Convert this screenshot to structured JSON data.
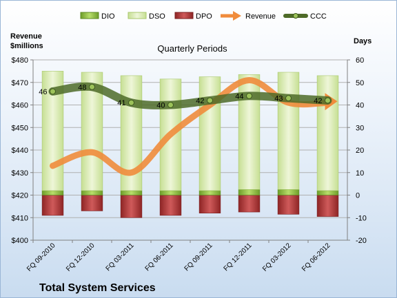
{
  "chart_data": {
    "type": "bar",
    "title": "Quarterly Periods",
    "footer_title": "Total System Services",
    "left_axis_label": [
      "Revenue",
      "$millions"
    ],
    "right_axis_label": "Days",
    "categories": [
      "FQ 09-2010",
      "FQ 12-2010",
      "FQ 03-2011",
      "FQ 06-2011",
      "FQ 09-2011",
      "FQ 12-2011",
      "FQ 03-2012",
      "FQ 06-2012"
    ],
    "left_axis": {
      "min": 400,
      "max": 480,
      "step": 10,
      "tick_labels": [
        "$400",
        "$410",
        "$420",
        "$430",
        "$440",
        "$450",
        "$460",
        "$470",
        "$480"
      ]
    },
    "right_axis": {
      "min": -20,
      "max": 60,
      "step": 10,
      "tick_labels": [
        "-20",
        "-10",
        "0",
        "10",
        "20",
        "30",
        "40",
        "50",
        "60"
      ]
    },
    "legend_position": "top",
    "series": [
      {
        "name": "DIO",
        "kind": "bar",
        "axis": "right",
        "color": "#8fbf3a",
        "values": [
          2,
          2,
          2,
          2,
          2,
          2.5,
          2.5,
          2
        ]
      },
      {
        "name": "DSO",
        "kind": "bar",
        "axis": "right",
        "color": "#dcebb7",
        "values": [
          53,
          52.5,
          51,
          49.5,
          50.5,
          51,
          52,
          51
        ]
      },
      {
        "name": "DPO",
        "kind": "bar",
        "axis": "right",
        "color": "#b03a3a",
        "values": [
          -9,
          -7,
          -10,
          -9,
          -8,
          -7.5,
          -8.5,
          -9.5
        ]
      },
      {
        "name": "Revenue",
        "kind": "line",
        "axis": "left",
        "color": "#f08c3c",
        "values": [
          433,
          439,
          430,
          447,
          460,
          471,
          461,
          461
        ]
      },
      {
        "name": "CCC",
        "kind": "line",
        "axis": "right",
        "color": "#4e6b28",
        "values": [
          46,
          48,
          41,
          40,
          42,
          44,
          43,
          42
        ],
        "labels": [
          "46",
          "48",
          "41",
          "40",
          "42",
          "44",
          "43",
          "42"
        ]
      }
    ]
  }
}
